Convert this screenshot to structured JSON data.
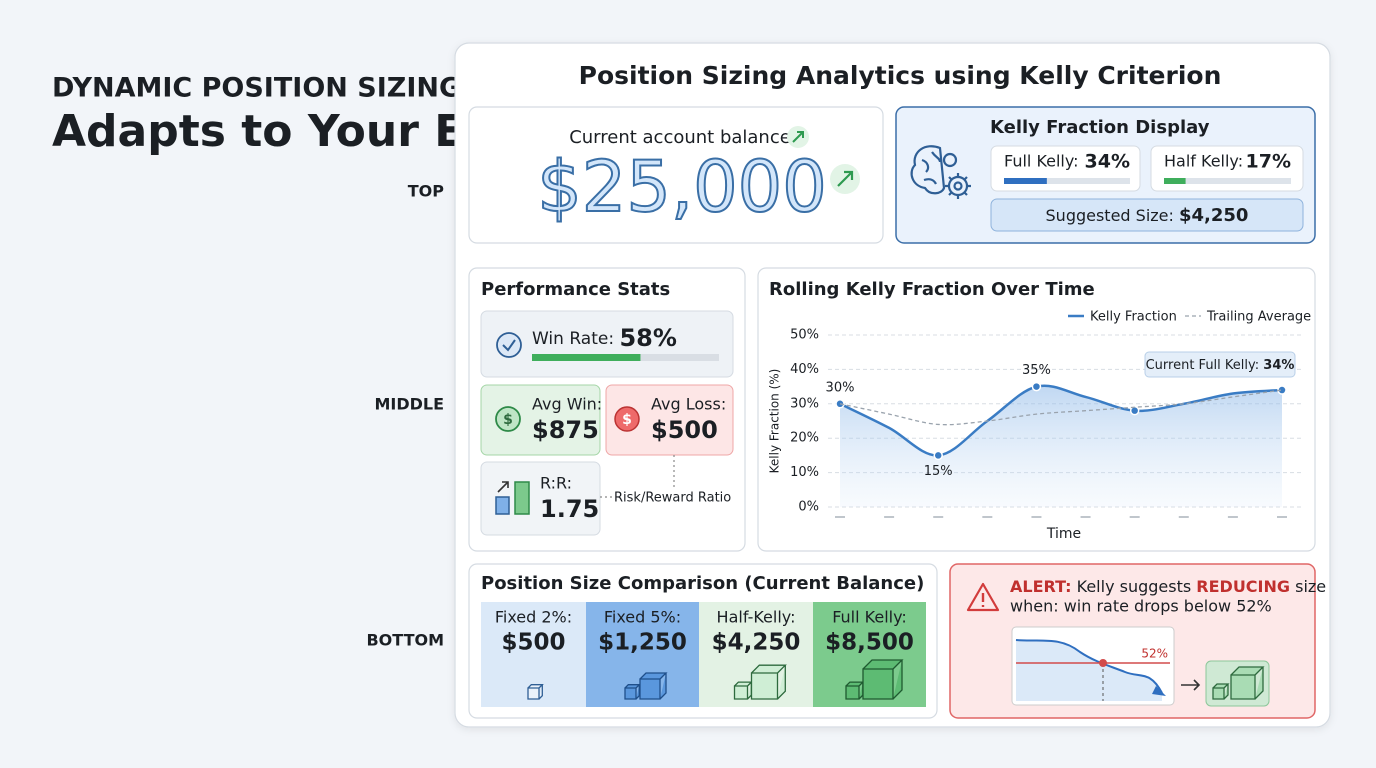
{
  "hero": {
    "kicker": "DYNAMIC POSITION SIZING",
    "headline": "Adapts to Your Edge",
    "levels": [
      "TOP",
      "MIDDLE",
      "BOTTOM"
    ]
  },
  "title": "Position Sizing Analytics using Kelly Criterion",
  "balance": {
    "label": "Current account balance",
    "value": "$25,000"
  },
  "kelly": {
    "title": "Kelly Fraction Display",
    "full": {
      "label": "Full Kelly:",
      "value": 34,
      "value_label": "34%"
    },
    "half": {
      "label": "Half Kelly:",
      "value": 17,
      "value_label": "17%"
    },
    "suggested": {
      "label": "Suggested Size:",
      "value": "$4,250"
    }
  },
  "performance": {
    "title": "Performance Stats",
    "win_rate": {
      "label": "Win Rate:",
      "value": 58,
      "value_label": "58%"
    },
    "avg_win": {
      "label": "Avg Win:",
      "value": "$875"
    },
    "avg_loss": {
      "label": "Avg Loss:",
      "value": "$500"
    },
    "rr": {
      "label": "R:R:",
      "value": "1.75",
      "annotation": "Risk/Reward Ratio"
    }
  },
  "chart_data": {
    "type": "line",
    "title": "Rolling Kelly Fraction Over Time",
    "x_label": "Time",
    "y_label": "Kelly Fraction (%)",
    "categories": [
      null,
      null,
      null,
      null,
      null,
      null,
      null,
      null,
      null,
      null
    ],
    "ylim": [
      0,
      50
    ],
    "yticks": [
      {
        "value": 0,
        "label": "0%"
      },
      {
        "value": 10,
        "label": "10%"
      },
      {
        "value": 20,
        "label": "20%"
      },
      {
        "value": 30,
        "label": "30%"
      },
      {
        "value": 40,
        "label": "40%"
      },
      {
        "value": 50,
        "label": "50%"
      }
    ],
    "grid": true,
    "legend": "top-right",
    "series": [
      {
        "name": "Kelly Fraction",
        "color": "#3a7cc4",
        "values": [
          30,
          23,
          15,
          25,
          35,
          32,
          28,
          30,
          33,
          34
        ],
        "value_labels": [
          "30%",
          null,
          "15%",
          null,
          "35%",
          null,
          null,
          null,
          null,
          null
        ]
      },
      {
        "name": "Trailing Average",
        "color": "#9aa3ad",
        "dashed": true,
        "values": [
          30,
          27,
          24,
          25,
          27,
          28,
          29,
          30,
          32,
          34
        ]
      }
    ],
    "annotation": {
      "label": "Current Full Kelly:",
      "value": "34%"
    }
  },
  "comparison": {
    "title": "Position Size Comparison (Current Balance)",
    "items": [
      {
        "label": "Fixed 2%:",
        "value": "$500"
      },
      {
        "label": "Fixed 5%:",
        "value": "$1,250"
      },
      {
        "label": "Half-Kelly:",
        "value": "$4,250"
      },
      {
        "label": "Full Kelly:",
        "value": "$8,500"
      }
    ]
  },
  "alert": {
    "prefix": "ALERT:",
    "text1": " Kelly suggests ",
    "emphasis": "REDUCING",
    "text2": " size",
    "line2": "when: win rate drops below 52%",
    "threshold": "52%"
  }
}
